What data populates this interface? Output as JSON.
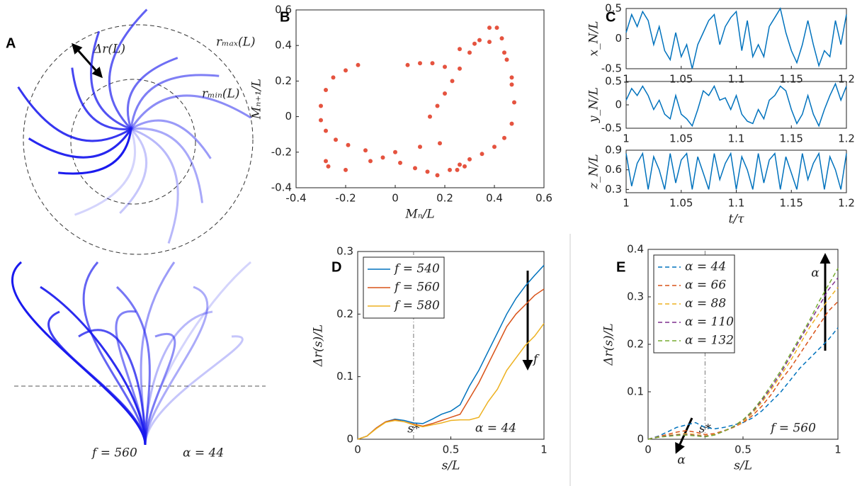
{
  "illustration": {
    "label": "A",
    "delta_label": "Δr(L)",
    "rmax_label": "rₘₐₓ(L)",
    "rmin_label": "rₘᵢₙ(L)",
    "f_label": "f = 560",
    "alpha_label": "α = 44"
  },
  "chart_data": [
    {
      "type": "scatter",
      "label": "B",
      "xlabel": "Mₙ/L",
      "ylabel": "Mₙ₊₁/L",
      "color": "#e5533f",
      "xlim": [
        -0.4,
        0.6
      ],
      "ylim": [
        -0.4,
        0.6
      ],
      "xticks": [
        -0.4,
        -0.2,
        0,
        0.2,
        0.4,
        0.6
      ],
      "yticks": [
        -0.4,
        -0.2,
        0,
        0.2,
        0.4,
        0.6
      ],
      "x": [
        -0.15,
        -0.2,
        -0.25,
        -0.28,
        -0.3,
        -0.3,
        -0.28,
        -0.24,
        -0.19,
        -0.12,
        -0.05,
        0.02,
        0.08,
        0.13,
        0.17,
        -0.28,
        -0.27,
        0.05,
        0.1,
        0.15,
        0.2,
        0.14,
        0.17,
        0.2,
        0.23,
        0.26,
        0.3,
        0.34,
        0.38,
        0.41,
        0.43,
        0.45,
        0.47,
        0.48,
        0.47,
        0.44,
        0.4,
        0.35,
        0.3,
        0.26,
        0.22,
        -0.2,
        -0.1,
        0.0,
        0.1,
        0.18,
        0.26,
        0.32,
        0.38,
        0.44,
        0.47,
        0.25,
        0.28
      ],
      "values": [
        0.29,
        0.26,
        0.22,
        0.15,
        0.06,
        -0.02,
        -0.08,
        -0.13,
        -0.16,
        -0.19,
        -0.23,
        -0.26,
        -0.29,
        -0.31,
        -0.33,
        -0.25,
        -0.28,
        0.29,
        0.3,
        0.3,
        0.28,
        0.0,
        0.06,
        0.13,
        0.2,
        0.27,
        0.36,
        0.43,
        0.5,
        0.5,
        0.44,
        0.32,
        0.18,
        0.08,
        -0.04,
        -0.12,
        -0.17,
        -0.21,
        -0.24,
        -0.27,
        -0.3,
        -0.3,
        -0.25,
        -0.2,
        -0.17,
        -0.15,
        0.38,
        0.41,
        0.42,
        0.36,
        0.22,
        -0.3,
        -0.28
      ]
    },
    {
      "type": "line",
      "label": "C",
      "ylabel": "x_N/L",
      "color": "#0072bd",
      "xlim": [
        1,
        1.2
      ],
      "ylim": [
        -0.5,
        0.5
      ],
      "xticks": [
        1,
        1.05,
        1.1,
        1.15,
        1.2
      ],
      "yticks": [
        -0.5,
        0,
        0.5
      ],
      "x": [
        1,
        1.005,
        1.01,
        1.015,
        1.02,
        1.025,
        1.03,
        1.035,
        1.04,
        1.045,
        1.05,
        1.055,
        1.06,
        1.065,
        1.07,
        1.075,
        1.08,
        1.085,
        1.09,
        1.095,
        1.1,
        1.105,
        1.11,
        1.115,
        1.12,
        1.125,
        1.13,
        1.135,
        1.14,
        1.145,
        1.15,
        1.155,
        1.16,
        1.165,
        1.17,
        1.175,
        1.18,
        1.185,
        1.19,
        1.195,
        1.2
      ],
      "values": [
        0.1,
        0.4,
        0.2,
        0.45,
        0.3,
        -0.1,
        0.2,
        -0.2,
        -0.35,
        0.1,
        -0.3,
        -0.1,
        -0.5,
        -0.1,
        0.1,
        0.3,
        0.4,
        -0.1,
        0.2,
        0.35,
        0.45,
        -0.2,
        0.3,
        -0.3,
        -0.1,
        -0.3,
        0.2,
        0.35,
        0.5,
        0.1,
        -0.2,
        -0.4,
        -0.1,
        0.3,
        -0.1,
        -0.45,
        -0.2,
        -0.3,
        0.3,
        -0.1,
        0.4
      ]
    },
    {
      "type": "line",
      "ylabel": "y_N/L",
      "color": "#0072bd",
      "xlim": [
        1,
        1.2
      ],
      "ylim": [
        -0.5,
        0.5
      ],
      "xticks": [
        1,
        1.05,
        1.1,
        1.15,
        1.2
      ],
      "yticks": [
        -0.5,
        0,
        0.5
      ],
      "x": [
        1,
        1.005,
        1.01,
        1.015,
        1.02,
        1.025,
        1.03,
        1.035,
        1.04,
        1.045,
        1.05,
        1.055,
        1.06,
        1.065,
        1.07,
        1.075,
        1.08,
        1.085,
        1.09,
        1.095,
        1.1,
        1.105,
        1.11,
        1.115,
        1.12,
        1.125,
        1.13,
        1.135,
        1.14,
        1.145,
        1.15,
        1.155,
        1.16,
        1.165,
        1.17,
        1.175,
        1.18,
        1.185,
        1.19,
        1.195,
        1.2
      ],
      "values": [
        0.1,
        0.35,
        0.2,
        0.4,
        0.2,
        -0.1,
        0.1,
        -0.2,
        -0.3,
        0.2,
        -0.2,
        -0.3,
        -0.45,
        -0.1,
        0.3,
        0.2,
        0.4,
        0.1,
        0.15,
        -0.1,
        0.2,
        -0.2,
        -0.35,
        -0.4,
        -0.1,
        -0.3,
        0.1,
        0.2,
        0.4,
        0.3,
        -0.1,
        -0.4,
        -0.2,
        0.2,
        -0.2,
        -0.45,
        -0.1,
        0.2,
        0.45,
        0.1,
        0.4
      ]
    },
    {
      "type": "line",
      "ylabel": "z_N/L",
      "xlabel": "t/τ",
      "color": "#0072bd",
      "xlim": [
        1,
        1.2
      ],
      "ylim": [
        0.25,
        0.9
      ],
      "xticks": [
        1,
        1.05,
        1.1,
        1.15,
        1.2
      ],
      "yticks": [
        0.3,
        0.6,
        0.9
      ],
      "x": [
        1,
        1.005,
        1.01,
        1.015,
        1.02,
        1.025,
        1.03,
        1.035,
        1.04,
        1.045,
        1.05,
        1.055,
        1.06,
        1.065,
        1.07,
        1.075,
        1.08,
        1.085,
        1.09,
        1.095,
        1.1,
        1.105,
        1.11,
        1.115,
        1.12,
        1.125,
        1.13,
        1.135,
        1.14,
        1.145,
        1.15,
        1.155,
        1.16,
        1.165,
        1.17,
        1.175,
        1.18,
        1.185,
        1.19,
        1.195,
        1.2
      ],
      "values": [
        0.85,
        0.35,
        0.7,
        0.85,
        0.3,
        0.8,
        0.6,
        0.3,
        0.85,
        0.4,
        0.75,
        0.85,
        0.3,
        0.8,
        0.55,
        0.3,
        0.85,
        0.45,
        0.7,
        0.85,
        0.3,
        0.8,
        0.6,
        0.3,
        0.85,
        0.4,
        0.75,
        0.85,
        0.3,
        0.8,
        0.55,
        0.3,
        0.85,
        0.45,
        0.7,
        0.85,
        0.3,
        0.8,
        0.6,
        0.3,
        0.85
      ]
    },
    {
      "type": "line",
      "label": "D",
      "xlabel": "s/L",
      "ylabel": "Δr(s)/L",
      "dashed": false,
      "xlim": [
        0,
        1
      ],
      "ylim": [
        0,
        0.3
      ],
      "xticks": [
        0,
        0.5,
        1
      ],
      "yticks": [
        0,
        0.1,
        0.2,
        0.3
      ],
      "markers": [
        {
          "value": 0.3,
          "label": "s*"
        }
      ],
      "annotations": [
        "α = 44",
        "f"
      ],
      "x": [
        0,
        0.05,
        0.1,
        0.15,
        0.2,
        0.25,
        0.3,
        0.35,
        0.4,
        0.45,
        0.5,
        0.55,
        0.6,
        0.65,
        0.7,
        0.75,
        0.8,
        0.85,
        0.9,
        0.95,
        1
      ],
      "series": [
        {
          "name": "f = 540",
          "color": "#0072bd",
          "values": [
            0,
            0.005,
            0.018,
            0.028,
            0.032,
            0.03,
            0.026,
            0.025,
            0.032,
            0.04,
            0.045,
            0.055,
            0.085,
            0.11,
            0.14,
            0.17,
            0.2,
            0.225,
            0.245,
            0.262,
            0.278
          ]
        },
        {
          "name": "f = 560",
          "color": "#d95319",
          "values": [
            0,
            0.005,
            0.018,
            0.028,
            0.031,
            0.028,
            0.024,
            0.021,
            0.025,
            0.03,
            0.035,
            0.04,
            0.065,
            0.09,
            0.12,
            0.15,
            0.18,
            0.2,
            0.215,
            0.23,
            0.24
          ]
        },
        {
          "name": "f = 580",
          "color": "#edb120",
          "values": [
            0,
            0.005,
            0.017,
            0.027,
            0.03,
            0.028,
            0.023,
            0.02,
            0.023,
            0.026,
            0.03,
            0.031,
            0.031,
            0.035,
            0.06,
            0.08,
            0.11,
            0.13,
            0.15,
            0.165,
            0.185
          ]
        }
      ]
    },
    {
      "type": "line",
      "label": "E",
      "xlabel": "s/L",
      "ylabel": "Δr(s)/L",
      "dashed": true,
      "xlim": [
        0,
        1
      ],
      "ylim": [
        0,
        0.4
      ],
      "xticks": [
        0,
        0.5,
        1
      ],
      "yticks": [
        0,
        0.1,
        0.2,
        0.3,
        0.4
      ],
      "markers": [
        {
          "value": 0.3,
          "label": "s*"
        }
      ],
      "annotations": [
        "f = 560",
        "α",
        "α"
      ],
      "x": [
        0,
        0.05,
        0.1,
        0.15,
        0.2,
        0.25,
        0.3,
        0.35,
        0.4,
        0.45,
        0.5,
        0.55,
        0.6,
        0.65,
        0.7,
        0.75,
        0.8,
        0.85,
        0.9,
        0.95,
        1
      ],
      "series": [
        {
          "name": "α = 44",
          "color": "#0072bd",
          "values": [
            0,
            0.006,
            0.015,
            0.025,
            0.03,
            0.035,
            0.025,
            0.022,
            0.025,
            0.03,
            0.035,
            0.045,
            0.06,
            0.08,
            0.1,
            0.125,
            0.15,
            0.17,
            0.19,
            0.21,
            0.235
          ]
        },
        {
          "name": "α = 66",
          "color": "#d95319",
          "values": [
            0,
            0.005,
            0.01,
            0.015,
            0.018,
            0.015,
            0.01,
            0.012,
            0.018,
            0.025,
            0.035,
            0.05,
            0.07,
            0.095,
            0.125,
            0.15,
            0.18,
            0.21,
            0.24,
            0.27,
            0.29
          ]
        },
        {
          "name": "α = 88",
          "color": "#edb120",
          "values": [
            0,
            0.004,
            0.008,
            0.01,
            0.012,
            0.01,
            0.007,
            0.01,
            0.017,
            0.025,
            0.037,
            0.055,
            0.078,
            0.105,
            0.135,
            0.165,
            0.2,
            0.235,
            0.265,
            0.295,
            0.32
          ]
        },
        {
          "name": "α = 110",
          "color": "#7e2f8e",
          "values": [
            0,
            0.004,
            0.007,
            0.009,
            0.01,
            0.008,
            0.006,
            0.009,
            0.017,
            0.026,
            0.04,
            0.058,
            0.082,
            0.11,
            0.14,
            0.175,
            0.21,
            0.245,
            0.28,
            0.315,
            0.34
          ]
        },
        {
          "name": "α = 132",
          "color": "#77ac30",
          "values": [
            0,
            0.004,
            0.006,
            0.008,
            0.009,
            0.007,
            0.005,
            0.009,
            0.017,
            0.027,
            0.041,
            0.06,
            0.085,
            0.115,
            0.145,
            0.18,
            0.215,
            0.25,
            0.29,
            0.325,
            0.36
          ]
        }
      ]
    }
  ]
}
